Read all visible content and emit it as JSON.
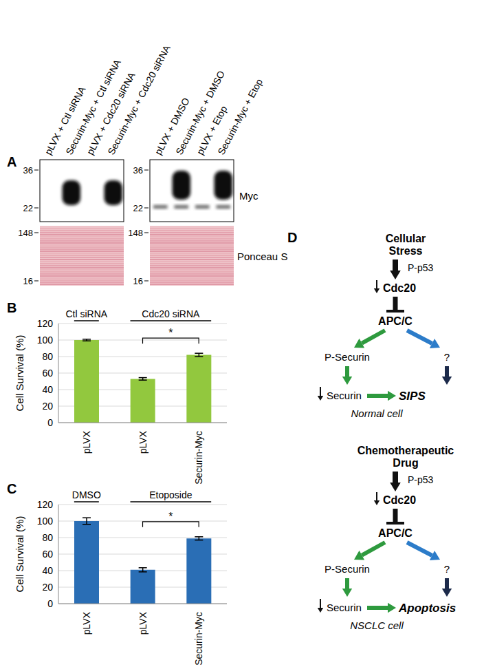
{
  "panels": [
    "A",
    "B",
    "C",
    "D"
  ],
  "blot": {
    "lanes": [
      [
        "pLVX + Ctl siRNA",
        "Securin-Myc + Ctl siRNA",
        "pLVX + Cdc20 siRNA",
        "Securin-Myc + Cdc20 siRNA"
      ],
      [
        "pLVX + DMSO",
        "Securin-Myc + DMSO",
        "pLVX + Etop",
        "Securin-Myc + Etop"
      ]
    ],
    "myc_band": [
      [
        false,
        true,
        false,
        true
      ],
      [
        false,
        true,
        false,
        true
      ]
    ],
    "faint_band": [
      false,
      true
    ],
    "myc_markers": [
      36,
      22
    ],
    "ponceau_markers": [
      148,
      16
    ],
    "myc_label": "Myc",
    "ponceau_label": "Ponceau S"
  },
  "chart_data": [
    {
      "type": "bar",
      "categories": [
        "pLVX",
        "pLVX",
        "Securin-Myc"
      ],
      "values": [
        100,
        53,
        82
      ],
      "errors": [
        1,
        1.5,
        2
      ],
      "color": "#92c83e",
      "ylim": [
        0,
        120
      ],
      "yticks": [
        0,
        20,
        40,
        60,
        80,
        100,
        120
      ],
      "grid": true,
      "ylabel": "Cell Survival (%)",
      "groups": [
        {
          "label": "Ctl siRNA",
          "span": [
            0,
            0
          ]
        },
        {
          "label": "Cdc20 siRNA",
          "span": [
            1,
            2
          ]
        }
      ],
      "significance": [
        {
          "label": "*",
          "between": [
            1,
            2
          ]
        }
      ]
    },
    {
      "type": "bar",
      "categories": [
        "pLVX",
        "pLVX",
        "Securin-Myc"
      ],
      "values": [
        100,
        41,
        79
      ],
      "errors": [
        4,
        2.5,
        2
      ],
      "color": "#2a6eb5",
      "ylim": [
        0,
        120
      ],
      "yticks": [
        0,
        20,
        40,
        60,
        80,
        100,
        120
      ],
      "grid": true,
      "ylabel": "Cell Survival (%)",
      "groups": [
        {
          "label": "DMSO",
          "span": [
            0,
            0
          ]
        },
        {
          "label": "Etoposide",
          "span": [
            1,
            2
          ]
        }
      ],
      "significance": [
        {
          "label": "*",
          "between": [
            1,
            2
          ]
        }
      ]
    }
  ],
  "diagram": [
    {
      "stress": [
        "Cellular",
        "Stress"
      ],
      "p53": "P-p53",
      "cdc20": "Cdc20",
      "apc": "APC/C",
      "securin_p": "P-Securin",
      "unknown": "?",
      "securin": "Securin",
      "outcome": "SIPS",
      "cell": "Normal cell"
    },
    {
      "stress": [
        "Chemotherapeutic",
        "Drug"
      ],
      "p53": "P-p53",
      "cdc20": "Cdc20",
      "apc": "APC/C",
      "securin_p": "P-Securin",
      "unknown": "?",
      "securin": "Securin",
      "outcome": "Apoptosis",
      "cell": "NSCLC cell"
    }
  ]
}
